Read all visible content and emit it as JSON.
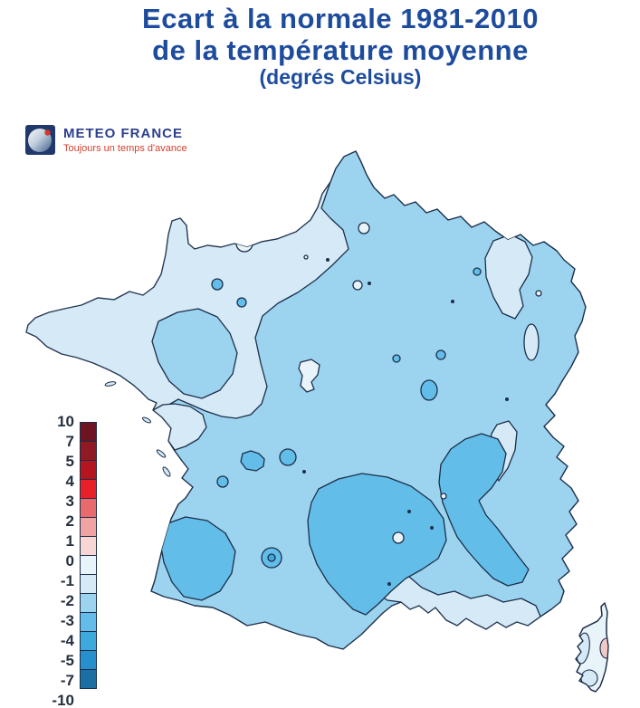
{
  "title": {
    "line1": "Ecart à la normale 1981-2010",
    "line2": "de la température moyenne",
    "line3": "(degrés Celsius)"
  },
  "logo": {
    "name": "METEO FRANCE",
    "tagline": "Toujours un temps d'avance"
  },
  "legend": {
    "unit": "degrés Celsius",
    "tick_labels": [
      "10",
      "7",
      "5",
      "4",
      "3",
      "2",
      "1",
      "0",
      "-1",
      "-2",
      "-3",
      "-4",
      "-5",
      "-7",
      "-10"
    ],
    "cell_colors": [
      "#6d1420",
      "#8f1a24",
      "#b5151f",
      "#e82029",
      "#e96a6a",
      "#f0a4a1",
      "#f7d6d3",
      "#e9f3fa",
      "#d5eaf6",
      "#9cd4f0",
      "#62bee9",
      "#3da9dd",
      "#2590cb",
      "#1b6fa2"
    ]
  },
  "palette": {
    "outline": "#1c2e49",
    "title_blue": "#1e4c9d",
    "logo_navy": "#2b3f8e",
    "logo_red": "#d0402f",
    "label_dark": "#26303d",
    "level_0_to_1": "#f2c9c6",
    "level_m1_to_0": "#e9f3fa",
    "level_m2_to_m1": "#d5eaf6",
    "level_m3_to_m2": "#9cd4f0",
    "level_m4_to_m3": "#62bee9",
    "level_m5_to_m4": "#3da9dd"
  },
  "map_data": {
    "type": "contour-choropleth",
    "subject": "France temperature anomaly vs 1981-2010 normal, degrees Celsius",
    "scale_range": [
      -10,
      10
    ],
    "scale_ticks": [
      10,
      7,
      5,
      4,
      3,
      2,
      1,
      0,
      -1,
      -2,
      -3,
      -4,
      -5,
      -7,
      -10
    ],
    "regions": [
      {
        "area": "Most of France (center, east, north interior)",
        "anomaly": "-3 to -2"
      },
      {
        "area": "Northwest (Brittany, Normandy, Paris basin to northern coast)",
        "anomaly": "-2 to -1"
      },
      {
        "area": "Alsace / Vosges pocket",
        "anomaly": "-2 to -1"
      },
      {
        "area": "Vendée Atlantic coast pocket",
        "anomaly": "-2 to -1"
      },
      {
        "area": "Mediterranean coastal strip and lower Rhône valley",
        "anomaly": "-2 to -1"
      },
      {
        "area": "Massif Central",
        "anomaly": "-4 to -3"
      },
      {
        "area": "Alps extending toward the Riviera",
        "anomaly": "-4 to -3"
      },
      {
        "area": "Southwest Aquitaine coast (Landes)",
        "anomaly": "-4 to -3"
      },
      {
        "area": "Small pocket in southwest interior (core)",
        "anomaly": "-5 to -4"
      },
      {
        "area": "Scattered small pockets countrywide",
        "anomaly": "-4 to -3 or -1 to 0"
      },
      {
        "area": "Corsica (most of island)",
        "anomaly": "-1 to 0"
      },
      {
        "area": "Corsica west/south fringe",
        "anomaly": "-2 to -1"
      },
      {
        "area": "Corsica east-coast pocket",
        "anomaly": "0 to 1"
      }
    ]
  }
}
